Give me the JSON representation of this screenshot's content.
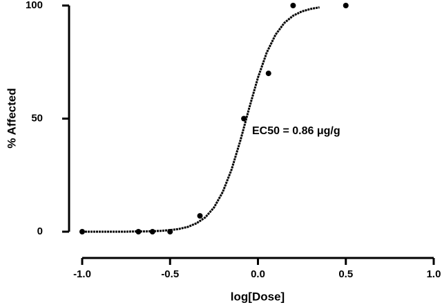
{
  "chart_data": {
    "type": "scatter",
    "xlabel": "log[Dose]",
    "ylabel": "% Affected",
    "annotation": "EC50 = 0.86 μg/g",
    "points": {
      "color": "#000000",
      "x": [
        -1.0,
        -0.68,
        -0.6,
        -0.5,
        -0.33,
        -0.08,
        0.06,
        0.2,
        0.5
      ],
      "y": [
        0,
        0,
        0,
        0,
        7,
        50,
        70,
        100,
        100
      ]
    },
    "curve": {
      "color": "#000000",
      "x": [
        -1.0,
        -0.95,
        -0.9,
        -0.85,
        -0.8,
        -0.75,
        -0.7,
        -0.65,
        -0.6,
        -0.55,
        -0.5,
        -0.45,
        -0.4,
        -0.35,
        -0.3,
        -0.25,
        -0.2,
        -0.15,
        -0.1,
        -0.05,
        0.0,
        0.05,
        0.1,
        0.15,
        0.2,
        0.25,
        0.3,
        0.35
      ],
      "y": [
        0.0,
        0.0,
        0.0,
        0.0,
        0.0,
        0.0,
        0.1,
        0.1,
        0.2,
        0.4,
        0.7,
        1.2,
        2.1,
        3.7,
        6.3,
        10.7,
        17.6,
        27.5,
        40.3,
        54.6,
        68.1,
        79.2,
        87.1,
        92.3,
        95.5,
        97.4,
        98.5,
        99.2
      ]
    },
    "xlim": [
      -1.0,
      1.0
    ],
    "xticks": [
      {
        "value": -1.0,
        "label": "-1.0"
      },
      {
        "value": -0.5,
        "label": "-0.5"
      },
      {
        "value": 0.0,
        "label": "0.0"
      },
      {
        "value": 0.5,
        "label": "0.5"
      },
      {
        "value": 1.0,
        "label": "1.0"
      }
    ],
    "ylim": [
      0,
      100
    ],
    "yticks": [
      0,
      50,
      100
    ],
    "grid": false
  }
}
